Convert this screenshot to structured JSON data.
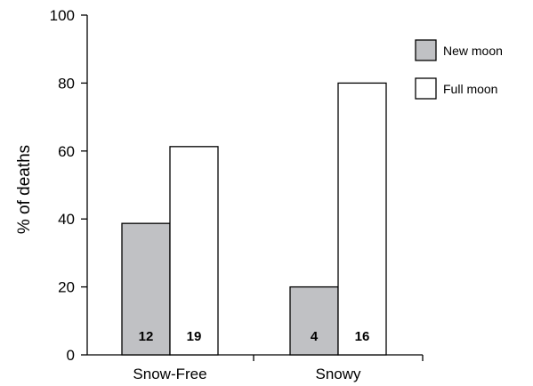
{
  "chart_data": {
    "type": "bar",
    "title": "",
    "xlabel": "",
    "ylabel": "% of deaths",
    "ylim": [
      0,
      100
    ],
    "yticks": [
      0,
      20,
      40,
      60,
      80,
      100
    ],
    "categories": [
      "Snow-Free",
      "Snowy"
    ],
    "series": [
      {
        "name": "New moon",
        "values": [
          38.7,
          20
        ],
        "data_labels": [
          "12",
          "4"
        ],
        "color": "#c0c1c4"
      },
      {
        "name": "Full moon",
        "values": [
          61.3,
          80
        ],
        "data_labels": [
          "19",
          "16"
        ],
        "color": "#ffffff"
      }
    ],
    "legend_position": "top-right",
    "grid": false
  }
}
